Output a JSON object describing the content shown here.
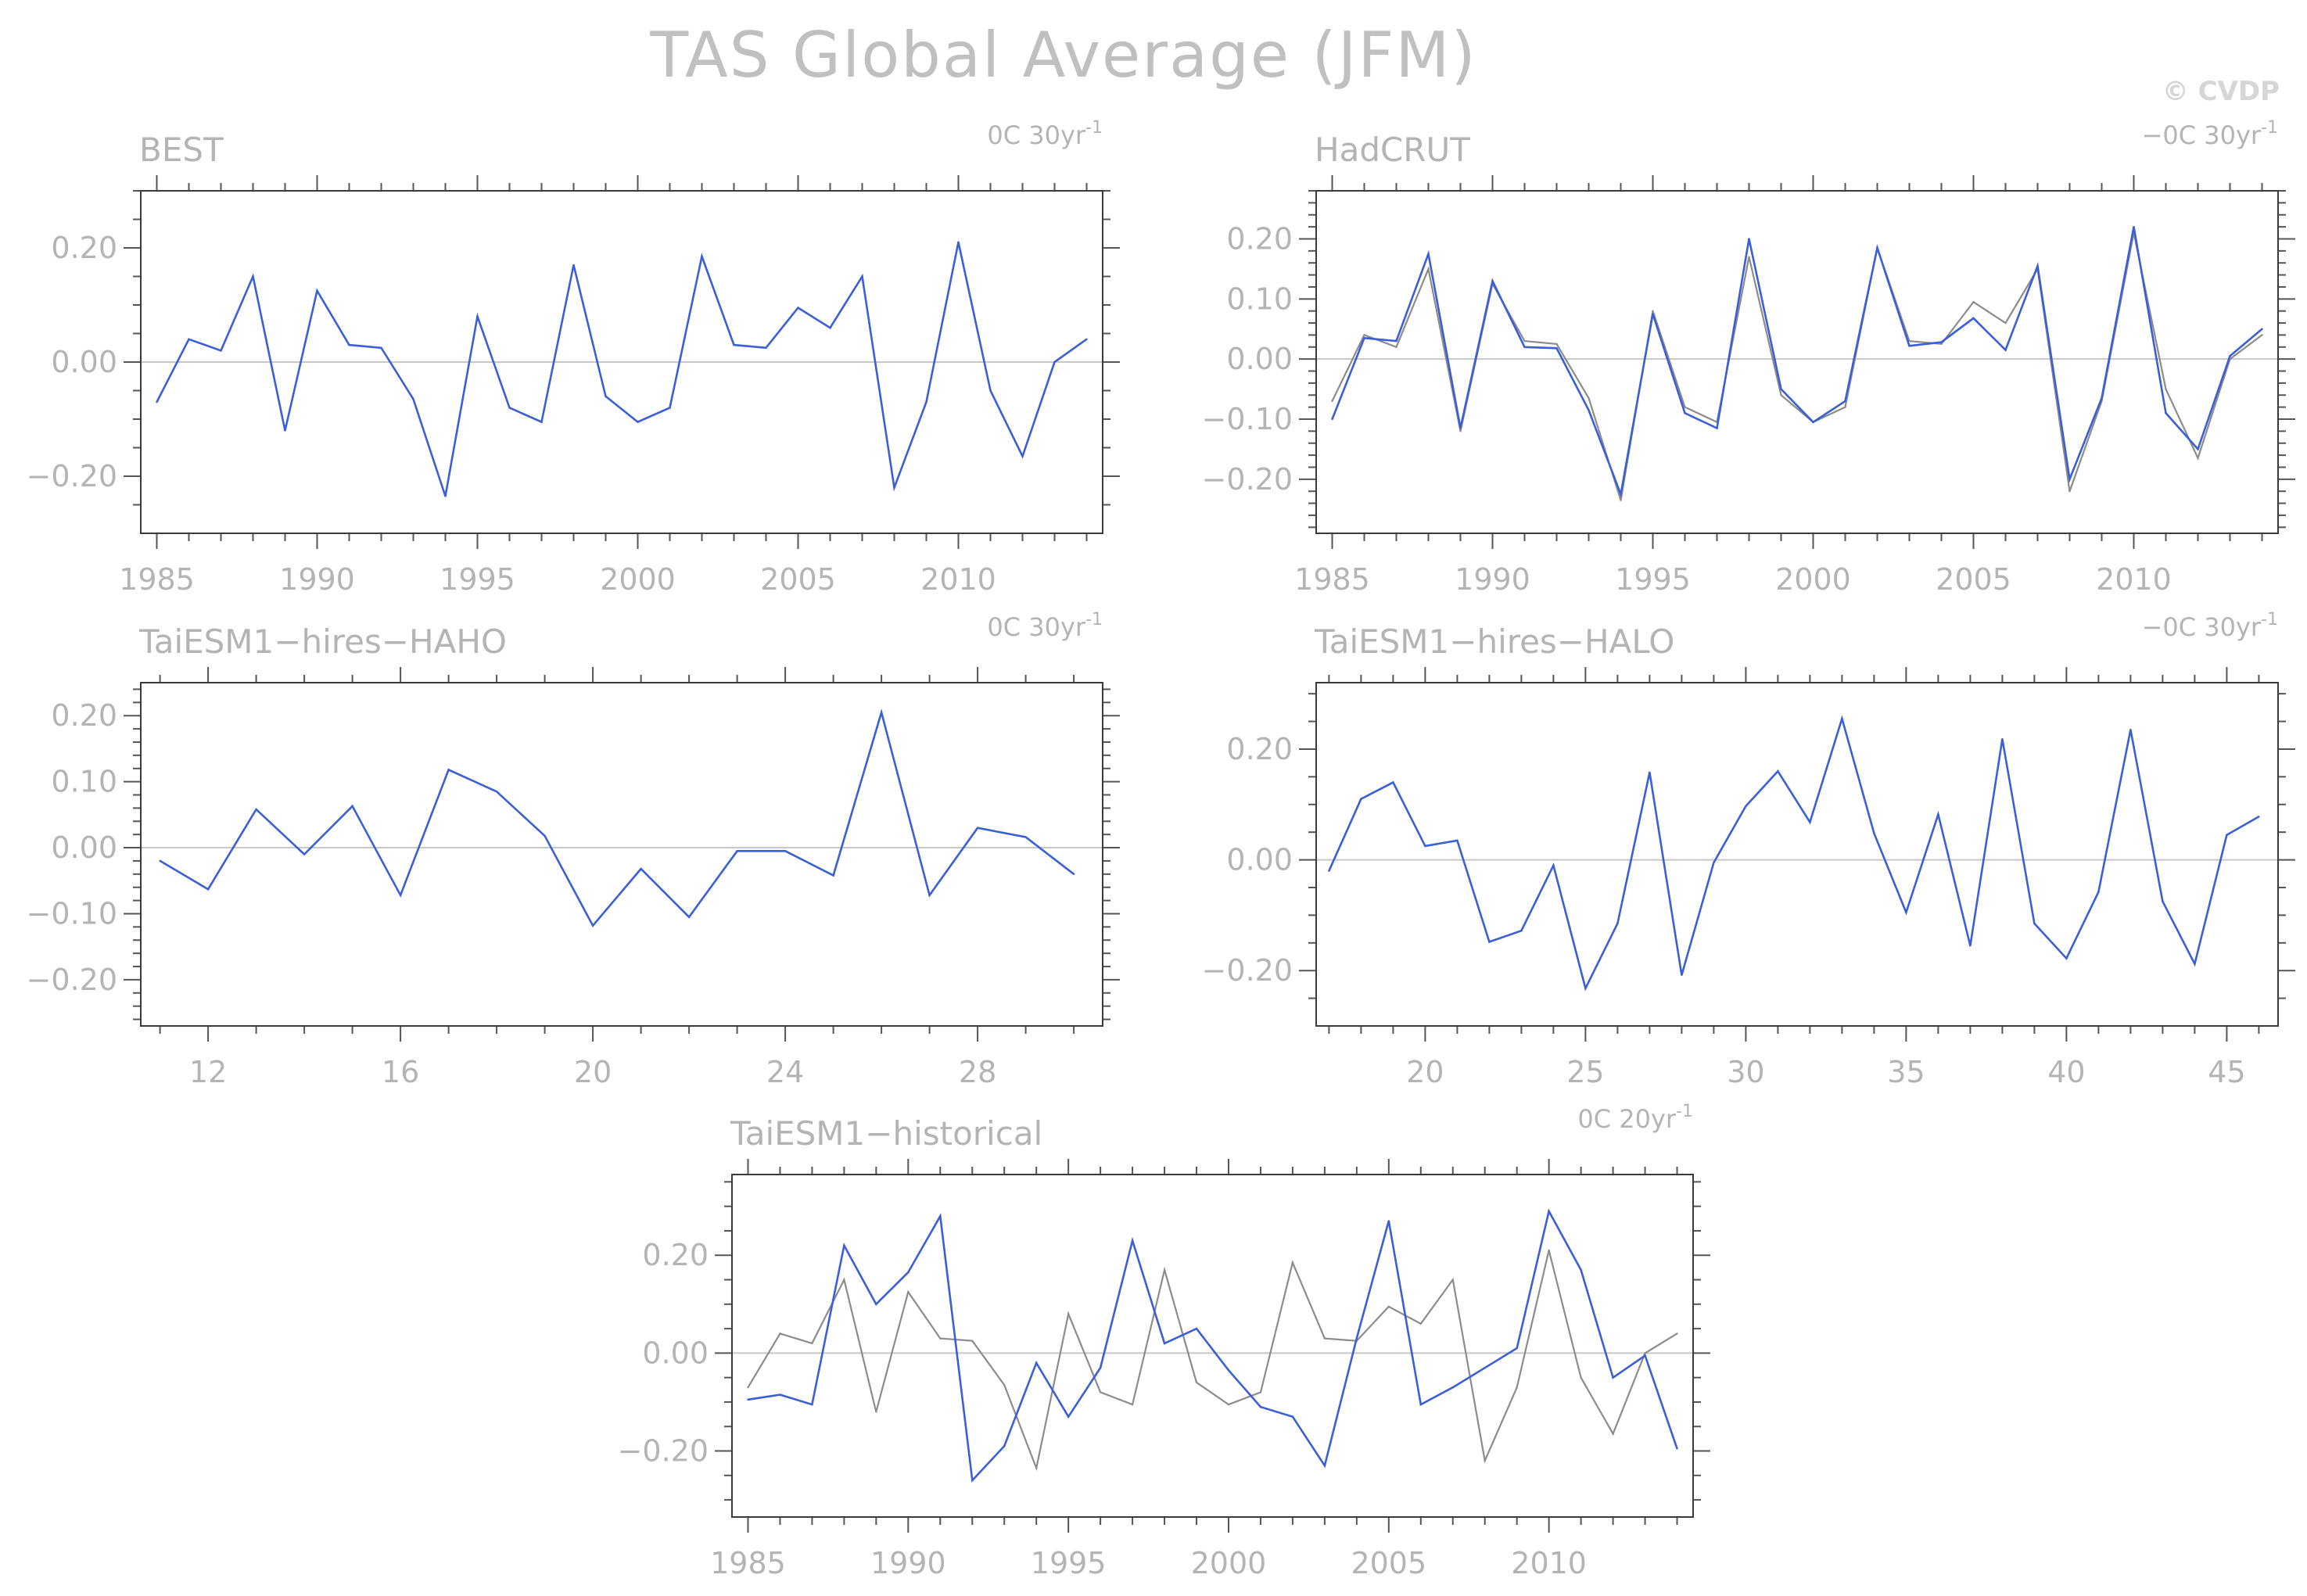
{
  "figure": {
    "title": "TAS Global Average (JFM)",
    "copyright": "© CVDP"
  },
  "colors": {
    "model": "#3a5fd6",
    "observed": "#8c8c8c",
    "zero_line": "#c8c8c8"
  },
  "chart_data": [
    {
      "type": "line",
      "title": "BEST",
      "trend_label": "0C 30yr",
      "trend_sup": "-1",
      "xlim": [
        1984.5,
        2014.5
      ],
      "ylim": [
        -0.3,
        0.3
      ],
      "x_ticks": [
        1985,
        1990,
        1995,
        2000,
        2005,
        2010
      ],
      "x_tick_labels": [
        "1985",
        "1990",
        "1995",
        "2000",
        "2005",
        "2010"
      ],
      "y_ticks": [
        -0.2,
        0.0,
        0.2
      ],
      "y_tick_labels": [
        "−0.20",
        "0.00",
        "0.20"
      ],
      "series": [
        {
          "role": "model",
          "x_start": 1985,
          "values": [
            -0.07,
            0.04,
            0.02,
            0.15,
            -0.12,
            0.125,
            0.03,
            0.025,
            -0.065,
            -0.235,
            0.08,
            -0.08,
            -0.105,
            0.17,
            -0.06,
            -0.105,
            -0.08,
            0.185,
            0.03,
            0.025,
            0.095,
            0.06,
            0.15,
            -0.22,
            -0.07,
            0.21,
            -0.05,
            -0.165,
            0.0,
            0.04
          ]
        }
      ]
    },
    {
      "type": "line",
      "title": "HadCRUT",
      "trend_label": "−0C 30yr",
      "trend_sup": "-1",
      "xlim": [
        1984.5,
        2014.5
      ],
      "ylim": [
        -0.29,
        0.28
      ],
      "x_ticks": [
        1985,
        1990,
        1995,
        2000,
        2005,
        2010
      ],
      "x_tick_labels": [
        "1985",
        "1990",
        "1995",
        "2000",
        "2005",
        "2010"
      ],
      "y_ticks": [
        -0.2,
        -0.1,
        0.0,
        0.1,
        0.2
      ],
      "y_tick_labels": [
        "−0.20",
        "−0.10",
        "0.00",
        "0.10",
        "0.20"
      ],
      "series": [
        {
          "role": "observed",
          "x_start": 1985,
          "values": [
            -0.07,
            0.04,
            0.02,
            0.15,
            -0.12,
            0.125,
            0.03,
            0.025,
            -0.065,
            -0.235,
            0.08,
            -0.08,
            -0.105,
            0.17,
            -0.06,
            -0.105,
            -0.08,
            0.185,
            0.03,
            0.025,
            0.095,
            0.06,
            0.15,
            -0.22,
            -0.07,
            0.21,
            -0.05,
            -0.165,
            0.0,
            0.04
          ]
        },
        {
          "role": "model",
          "x_start": 1985,
          "values": [
            -0.1,
            0.035,
            0.03,
            0.175,
            -0.115,
            0.13,
            0.02,
            0.018,
            -0.085,
            -0.225,
            0.075,
            -0.09,
            -0.115,
            0.2,
            -0.05,
            -0.105,
            -0.07,
            0.185,
            0.022,
            0.028,
            0.068,
            0.015,
            0.155,
            -0.2,
            -0.065,
            0.22,
            -0.09,
            -0.15,
            0.005,
            0.05
          ]
        }
      ]
    },
    {
      "type": "line",
      "title": "TaiESM1−hires−HAHO",
      "trend_label": "0C 30yr",
      "trend_sup": "-1",
      "xlim": [
        10.6,
        30.6
      ],
      "ylim": [
        -0.27,
        0.25
      ],
      "x_ticks": [
        12,
        16,
        20,
        24,
        28
      ],
      "x_tick_labels": [
        "12",
        "16",
        "20",
        "24",
        "28"
      ],
      "y_ticks": [
        -0.2,
        -0.1,
        0.0,
        0.1,
        0.2
      ],
      "y_tick_labels": [
        "−0.20",
        "−0.10",
        "0.00",
        "0.10",
        "0.20"
      ],
      "series": [
        {
          "role": "model",
          "x_start": 11,
          "values": [
            -0.02,
            -0.063,
            0.058,
            -0.01,
            0.063,
            -0.072,
            0.118,
            0.085,
            0.018,
            -0.118,
            -0.032,
            -0.105,
            -0.005,
            -0.005,
            -0.042,
            0.205,
            -0.072,
            0.03,
            0.016,
            -0.04
          ]
        }
      ]
    },
    {
      "type": "line",
      "title": "TaiESM1−hires−HALO",
      "trend_label": "−0C 30yr",
      "trend_sup": "-1",
      "xlim": [
        16.6,
        46.6
      ],
      "ylim": [
        -0.3,
        0.32
      ],
      "x_ticks": [
        20,
        25,
        30,
        35,
        40,
        45
      ],
      "x_tick_labels": [
        "20",
        "25",
        "30",
        "35",
        "40",
        "45"
      ],
      "y_ticks": [
        -0.2,
        0.0,
        0.2
      ],
      "y_tick_labels": [
        "−0.20",
        "0.00",
        "0.20"
      ],
      "series": [
        {
          "role": "model",
          "x_start": 17,
          "values": [
            -0.02,
            0.11,
            0.14,
            0.025,
            0.035,
            -0.148,
            -0.128,
            -0.01,
            -0.232,
            -0.115,
            0.158,
            -0.208,
            -0.005,
            0.097,
            0.16,
            0.068,
            0.255,
            0.048,
            -0.095,
            0.082,
            -0.155,
            0.218,
            -0.115,
            -0.178,
            -0.058,
            0.235,
            -0.075,
            -0.188,
            0.045,
            0.078
          ]
        }
      ]
    },
    {
      "type": "line",
      "title": "TaiESM1−historical",
      "trend_label": "0C 20yr",
      "trend_sup": "-1",
      "xlim": [
        1984.5,
        2014.5
      ],
      "ylim": [
        -0.335,
        0.365
      ],
      "x_ticks": [
        1985,
        1990,
        1995,
        2000,
        2005,
        2010
      ],
      "x_tick_labels": [
        "1985",
        "1990",
        "1995",
        "2000",
        "2005",
        "2010"
      ],
      "y_ticks": [
        -0.2,
        0.0,
        0.2
      ],
      "y_tick_labels": [
        "−0.20",
        "0.00",
        "0.20"
      ],
      "series": [
        {
          "role": "observed",
          "x_start": 1985,
          "values": [
            -0.07,
            0.04,
            0.02,
            0.15,
            -0.12,
            0.125,
            0.03,
            0.025,
            -0.065,
            -0.235,
            0.08,
            -0.08,
            -0.105,
            0.17,
            -0.06,
            -0.105,
            -0.08,
            0.185,
            0.03,
            0.025,
            0.095,
            0.06,
            0.15,
            -0.22,
            -0.07,
            0.21,
            -0.05,
            -0.165,
            0.0,
            0.04
          ]
        },
        {
          "role": "model",
          "x_start": 1985,
          "values": [
            -0.095,
            -0.085,
            -0.105,
            0.22,
            0.1,
            0.165,
            0.28,
            -0.26,
            -0.19,
            -0.02,
            -0.13,
            -0.03,
            0.23,
            0.02,
            0.05,
            -0.035,
            -0.11,
            -0.13,
            -0.23,
            0.03,
            0.27,
            -0.105,
            -0.07,
            -0.03,
            0.01,
            0.29,
            0.17,
            -0.05,
            -0.005,
            -0.195
          ]
        }
      ]
    }
  ]
}
